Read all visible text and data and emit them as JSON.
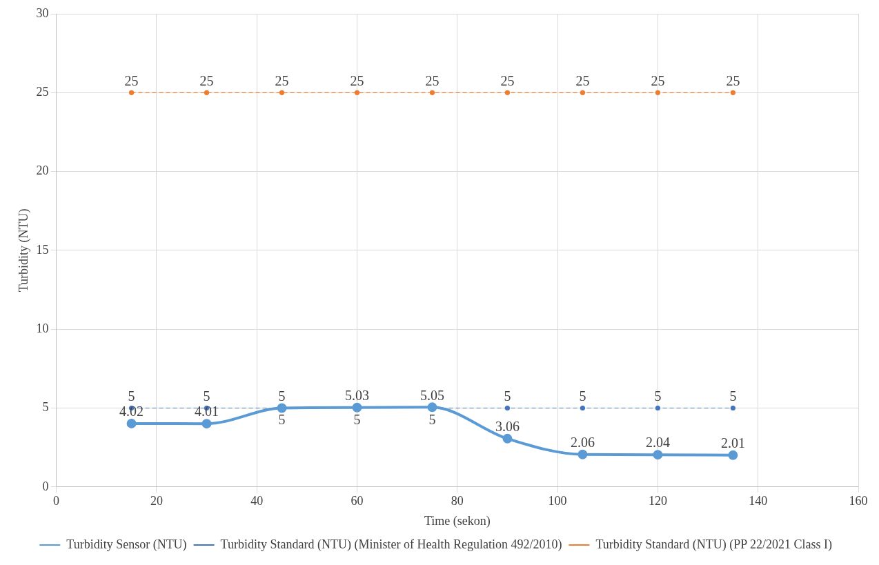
{
  "chart_data": {
    "type": "line",
    "xlabel": "Time (sekon)",
    "ylabel": "Turbidity (NTU)",
    "x": [
      15,
      30,
      45,
      60,
      75,
      90,
      105,
      120,
      135
    ],
    "series": [
      {
        "name": "Turbidity Sensor (NTU)",
        "color": "#5b9bd5",
        "values": [
          4.02,
          4.01,
          5,
          5.03,
          5.05,
          3.06,
          2.06,
          2.04,
          2.01
        ],
        "line_style": "solid"
      },
      {
        "name": "Turbidity Standard (NTU) (Minister of Health Regulation 492/2010)",
        "color": "#4472c4",
        "values": [
          5,
          5,
          5,
          5,
          5,
          5,
          5,
          5,
          5
        ],
        "line_style": "dashed"
      },
      {
        "name": "Turbidity Standard (NTU) (PP 22/2021 Class I)",
        "color": "#ed7d31",
        "values": [
          25,
          25,
          25,
          25,
          25,
          25,
          25,
          25,
          25
        ],
        "line_style": "dashed"
      }
    ],
    "xlim": [
      0,
      160
    ],
    "xticks": [
      0,
      20,
      40,
      60,
      80,
      100,
      120,
      140,
      160
    ],
    "ylim": [
      0,
      30
    ],
    "yticks": [
      0,
      5,
      10,
      15,
      20,
      25,
      30
    ],
    "grid": true,
    "legend": "bottom",
    "marker": "circle",
    "data_labels": true
  }
}
